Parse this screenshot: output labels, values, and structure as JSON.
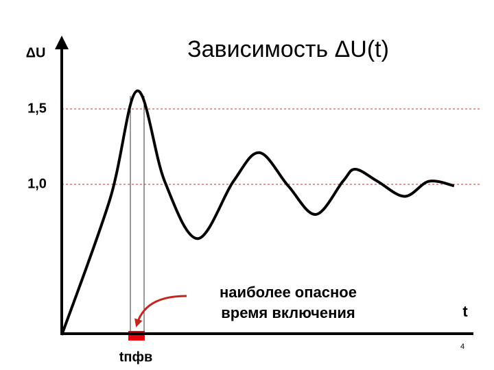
{
  "chart_data": {
    "type": "line",
    "title": "Зависимость ΔU(t)",
    "y_label": "ΔU",
    "x_label": "t",
    "annotation": "наиболее опасное время включения",
    "marker_label": "tпфв",
    "page_number": "4",
    "x": [
      0,
      1.17,
      1.83,
      2.5,
      3.3,
      4.17,
      4.8,
      5.5,
      6.17,
      6.83,
      7.13,
      7.67,
      8.33,
      8.92,
      9.53
    ],
    "series": [
      {
        "name": "ΔU(t)",
        "color": "#000000",
        "values": [
          0,
          0.9,
          1.62,
          1.02,
          0.64,
          1.02,
          1.21,
          0.99,
          0.8,
          1.02,
          1.1,
          1.02,
          0.92,
          1.02,
          0.99
        ]
      }
    ],
    "xlim": [
      0,
      10
    ],
    "ylim": [
      0,
      2
    ],
    "yticks": [
      {
        "value": 1,
        "label": "1,0"
      },
      {
        "value": 1.5,
        "label": "1,5"
      }
    ],
    "grid": true,
    "grid_color": "#b03a3a"
  }
}
